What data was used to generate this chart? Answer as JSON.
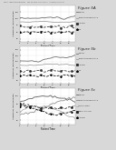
{
  "header_text": "Patent Application Publication    Nov. 29, 2012 Sheet 9 of 13    US 2012/0304551 A1",
  "fig5a_title": "Figure 5A",
  "fig5b_title": "Figure 5b",
  "fig5c_title": "Figure 5c",
  "bg_color": "#d8d8d8",
  "plot_bg": "#ffffff",
  "xlabel": "Patient Time",
  "ylabel": "Analog sig, running mean",
  "legend_entries_ab": [
    "HEART",
    "SUPRAVENTRICULAR",
    "ALDOSE",
    "GS"
  ],
  "legend_entries_c": [
    "HEART",
    "SUPRAVENTRICULAR",
    "ARRHYTHMIA",
    "FIBRILLATION",
    "ALDOSE",
    "GS"
  ],
  "colors_ab": [
    "#666666",
    "#999999",
    "#333333",
    "#000000"
  ],
  "colors_c": [
    "#555555",
    "#888888",
    "#aaaaaa",
    "#222222",
    "#000000"
  ],
  "num_points": 28
}
